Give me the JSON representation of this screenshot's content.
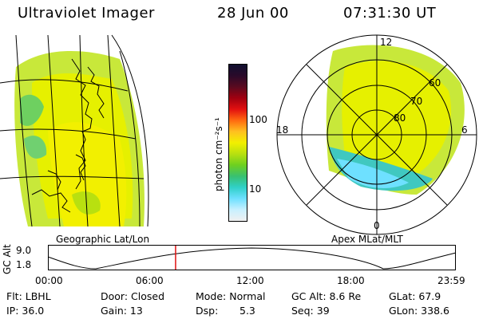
{
  "header": {
    "title": "Ultraviolet Imager",
    "date": "28 Jun 00",
    "time": "07:31:30 UT"
  },
  "left_panel": {
    "caption": "Geographic Lat/Lon"
  },
  "right_panel": {
    "caption": "Apex MLat/MLT",
    "mlt_labels": {
      "top": "12",
      "left": "18",
      "right": "6",
      "bottom": "0"
    },
    "lat_labels": [
      "60",
      "70",
      "80"
    ]
  },
  "colorbar": {
    "unit_label": "photon cm⁻²s⁻¹",
    "ticks": [
      "100",
      "10"
    ],
    "scale": "log",
    "colors": [
      "#101030",
      "#2a0a2a",
      "#5a0a20",
      "#a00010",
      "#e21010",
      "#ff6a10",
      "#ffc020",
      "#f2f000",
      "#b8e010",
      "#6ed020",
      "#38c070",
      "#30d0c8",
      "#6ee0ff",
      "#c8f0ff",
      "#f0f0f0"
    ]
  },
  "timeline": {
    "axis_label": "GC Alt",
    "y_ticks": [
      "9.0",
      "1.8"
    ],
    "x_ticks": [
      "00:00",
      "06:00",
      "12:00",
      "18:00",
      "23:59"
    ],
    "current_time_fraction": 0.313,
    "marker_color": "#e01010"
  },
  "info": {
    "flt": "Flt: LBHL",
    "ip": "IP: 36.0",
    "door": "Door: Closed",
    "gain": "Gain: 13",
    "mode": "Mode: Normal",
    "dsp_label": "Dsp:",
    "dsp_value": "5.3",
    "gcalt": "GC Alt: 8.6 Re",
    "seq": "Seq: 39",
    "glat": "GLat: 67.9",
    "glon": "GLon: 338.6"
  }
}
